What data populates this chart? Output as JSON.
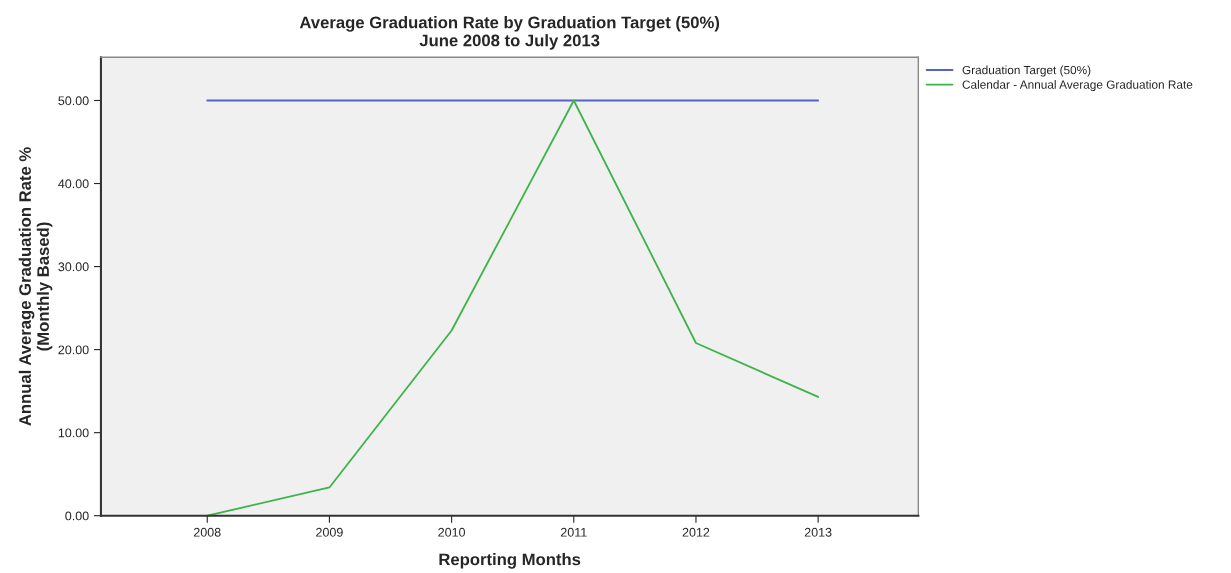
{
  "chart_data": {
    "type": "line",
    "title": "Average Graduation Rate by Graduation Target (50%)\nJune 2008 to July 2013",
    "xlabel": "Reporting Months",
    "ylabel": "Annual Average Graduation Rate %\n(Monthly Based)",
    "categories": [
      "2008",
      "2009",
      "2010",
      "2011",
      "2012",
      "2013"
    ],
    "series": [
      {
        "name": "Graduation Target (50%)",
        "color": "#5563c1",
        "values": [
          50,
          50,
          50,
          50,
          50,
          50
        ]
      },
      {
        "name": "Calendar - Annual Average Graduation Rate",
        "color": "#3cb44a",
        "values": [
          0,
          3.4,
          22.3,
          50,
          20.8,
          14.3
        ]
      }
    ],
    "ylim": [
      0,
      55.2
    ],
    "yticks": [
      {
        "value": 0,
        "label": "0.00"
      },
      {
        "value": 10,
        "label": "10.00"
      },
      {
        "value": 20,
        "label": "20.00"
      },
      {
        "value": 30,
        "label": "30.00"
      },
      {
        "value": 40,
        "label": "40.00"
      },
      {
        "value": 50,
        "label": "50.00"
      }
    ],
    "legend": "top right",
    "grid": false
  }
}
